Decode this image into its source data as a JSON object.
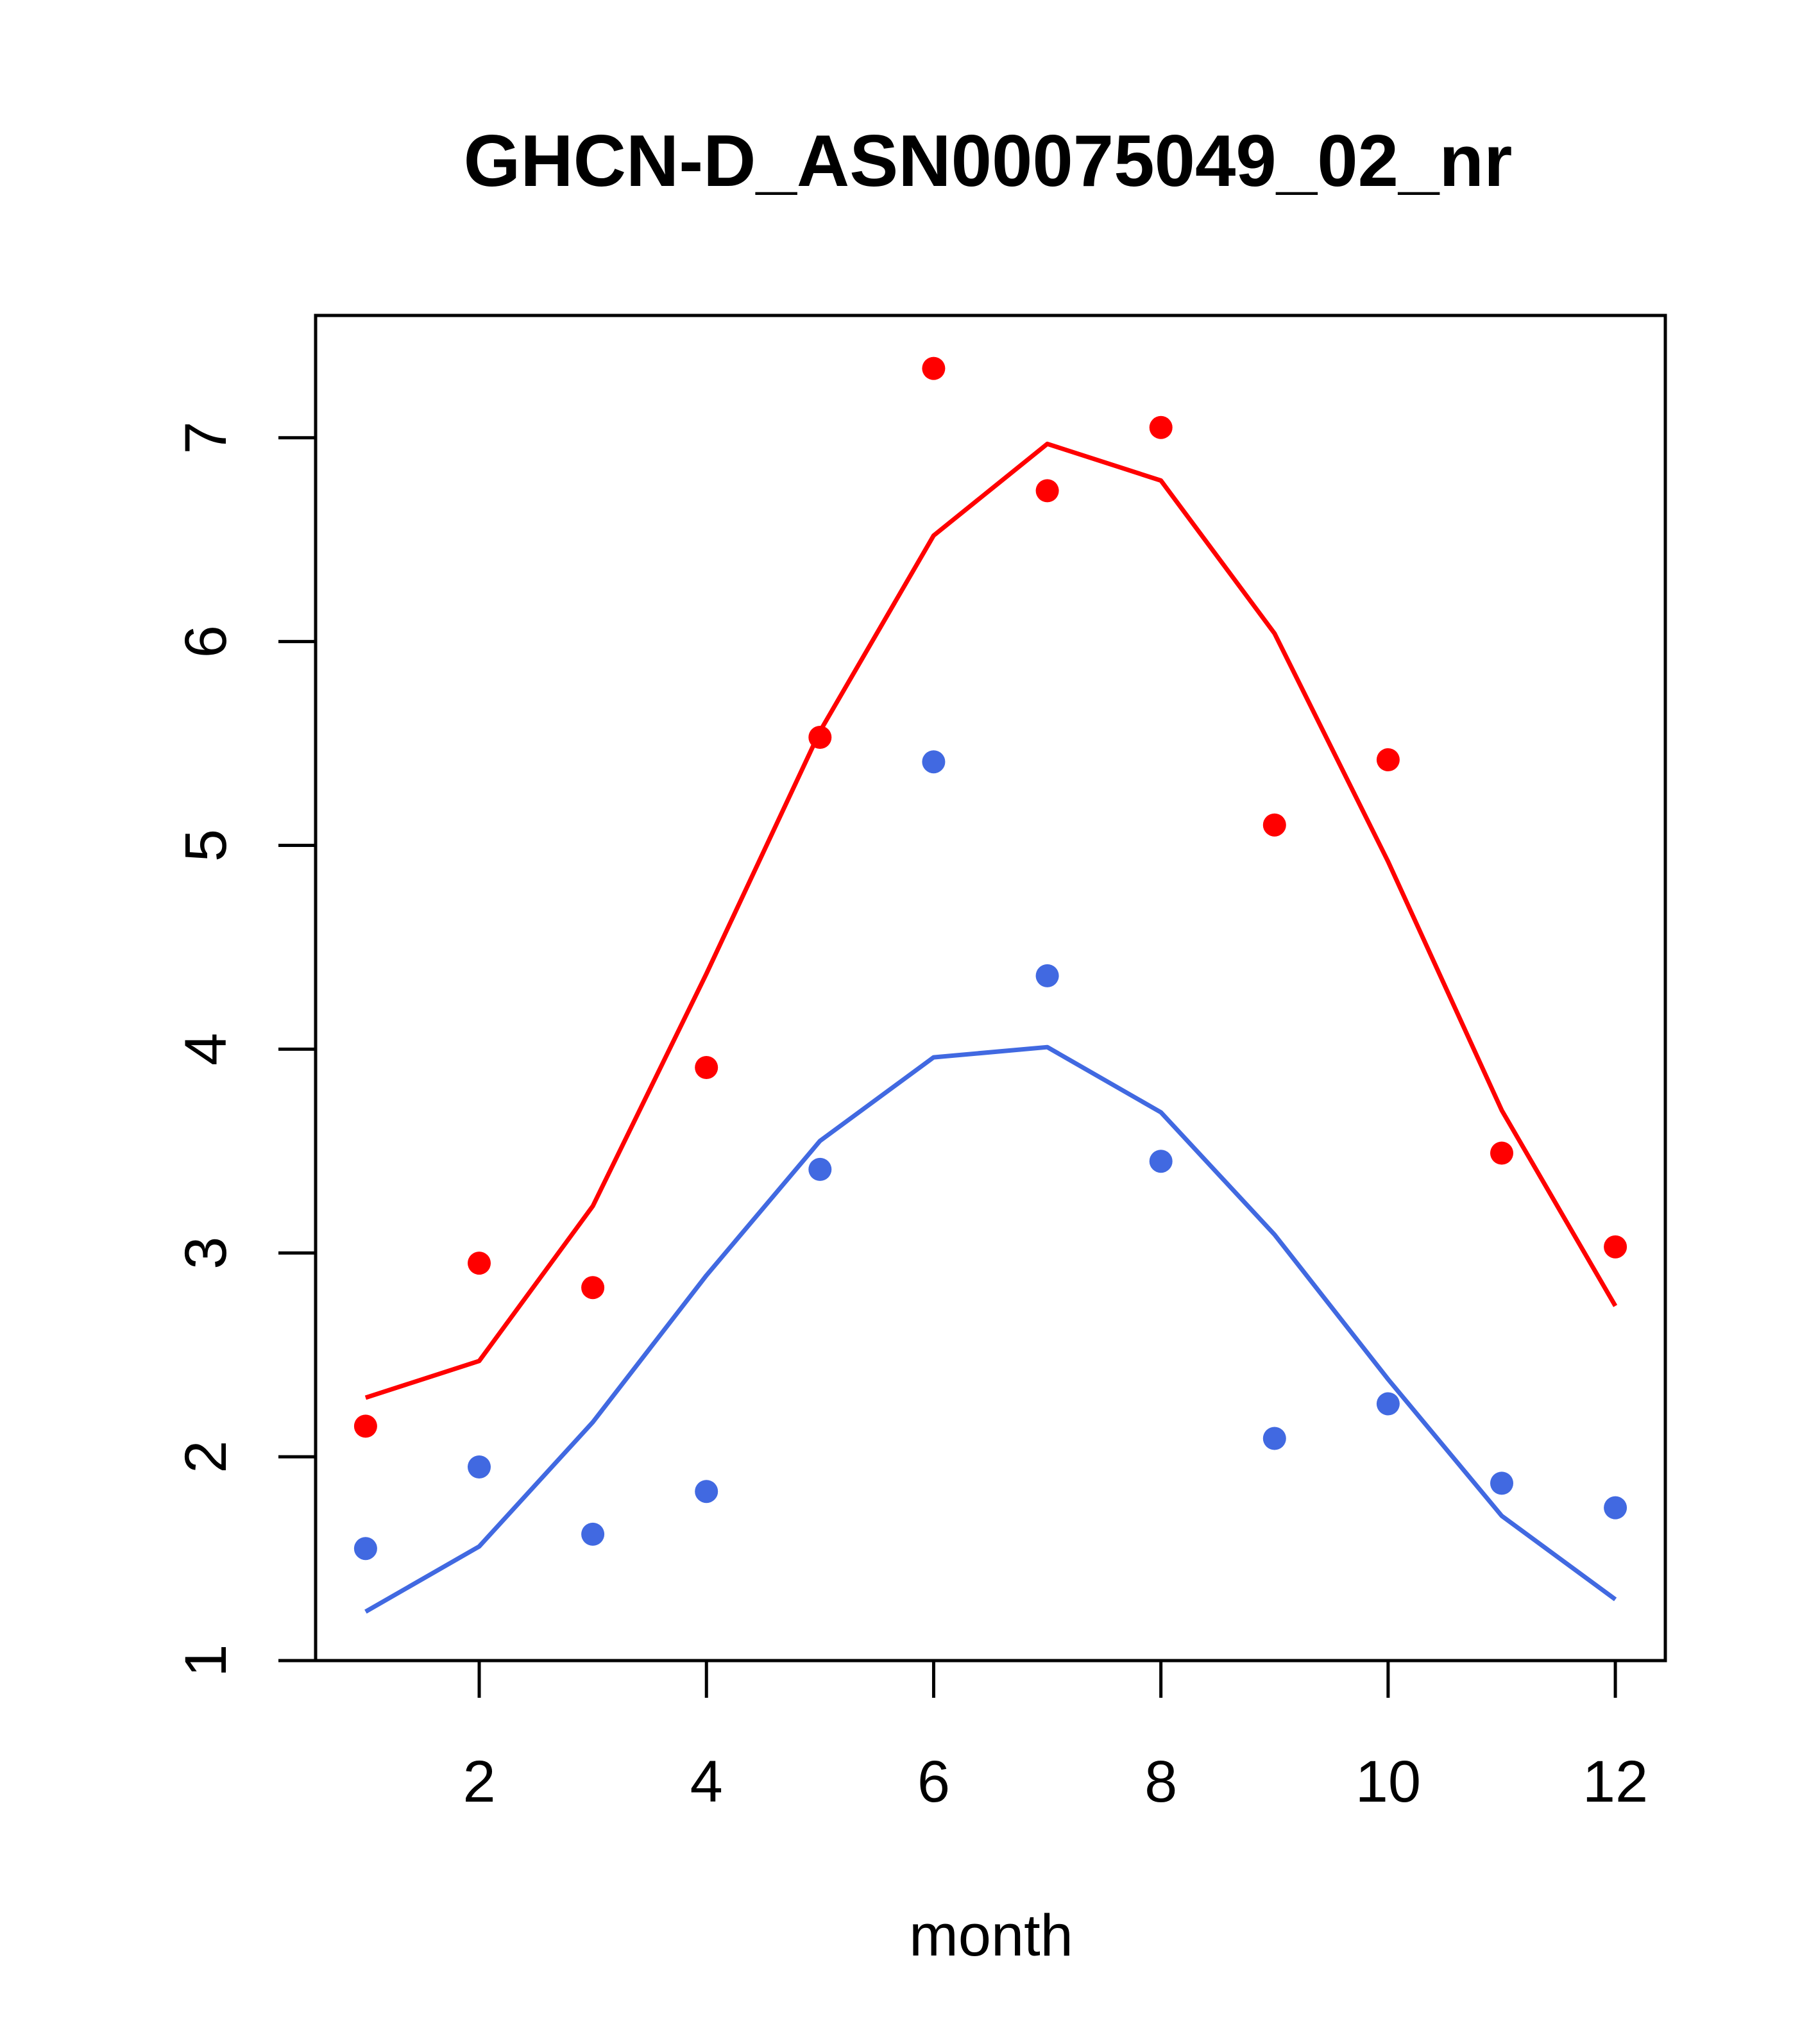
{
  "chart_data": {
    "type": "scatter",
    "title": "GHCN-D_ASN00075049_02_nr",
    "xlabel": "month",
    "ylabel": "",
    "xlim": [
      0.56,
      12.44
    ],
    "ylim": [
      1,
      7.6
    ],
    "xticks": [
      2,
      4,
      6,
      8,
      10,
      12
    ],
    "yticks": [
      1,
      2,
      3,
      4,
      5,
      6,
      7
    ],
    "grid": false,
    "legend": "none",
    "x": [
      1,
      2,
      3,
      4,
      5,
      6,
      7,
      8,
      9,
      10,
      11,
      12
    ],
    "series": [
      {
        "color": "#ff0000",
        "points": [
          2.15,
          2.95,
          2.83,
          3.91,
          5.53,
          7.34,
          6.74,
          7.05,
          5.1,
          5.42,
          3.49,
          3.03
        ],
        "line": [
          2.29,
          2.47,
          3.23,
          4.37,
          5.56,
          6.52,
          6.97,
          6.79,
          6.04,
          4.92,
          3.7,
          2.74
        ]
      },
      {
        "color": "#4169e1",
        "points": [
          1.55,
          1.95,
          1.62,
          1.83,
          3.41,
          5.41,
          4.36,
          3.45,
          2.09,
          2.26,
          1.87,
          1.75
        ],
        "line": [
          1.24,
          1.56,
          2.17,
          2.89,
          3.55,
          3.96,
          4.01,
          3.69,
          3.09,
          2.38,
          1.71,
          1.3
        ]
      }
    ]
  }
}
